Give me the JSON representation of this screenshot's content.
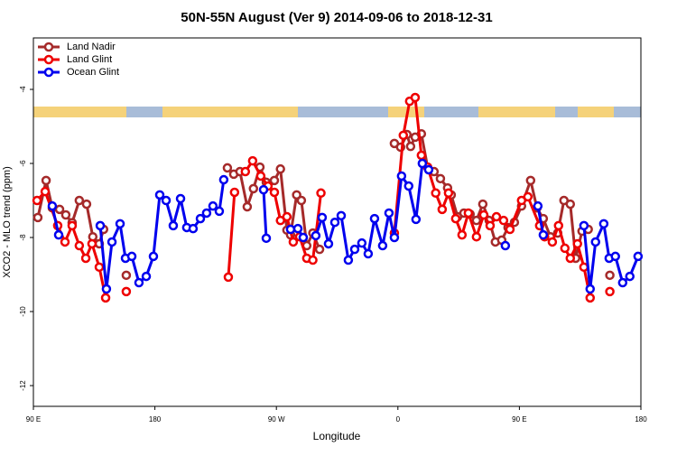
{
  "chart_data": {
    "type": "line",
    "title": "50N-55N August (Ver 9)   2014-09-06 to 2018-12-31",
    "xlabel": "Longitude",
    "ylabel": "XCO2 - MLO trend (ppm)",
    "xlim": [
      90,
      540
    ],
    "ylim": [
      -12.56,
      -2.61
    ],
    "xticks": [
      {
        "value": 90,
        "label": "90 E"
      },
      180,
      {
        "value": 270,
        "label": "90 W"
      },
      {
        "value": 360,
        "label": "0"
      },
      {
        "value": 450,
        "label": "90 E"
      },
      {
        "value": 540,
        "label": "180"
      }
    ],
    "yticks": [
      -4,
      -6,
      -8,
      -10,
      -12
    ],
    "legend": "upper left",
    "series": [
      {
        "name": "Land Nadir",
        "color": "#a52a2a",
        "x": [
          93.3,
          99.4,
          104,
          109.4,
          114,
          118.7,
          124,
          129.4,
          134,
          138.8,
          142,
          null,
          158.8,
          null,
          233.7,
          238.4,
          243,
          248.4,
          253,
          257.8,
          262.5,
          268.5,
          273,
          277.8,
          280.5,
          285,
          288.5,
          292.5,
          297,
          302,
          null,
          357.4,
          362,
          366.7,
          369.4,
          372.8,
          377.4,
          382,
          386.8,
          391.5,
          396.8,
          399.5,
          404.2,
          408.9,
          413.5,
          418.2,
          422.9,
          427.6,
          432.2,
          436.9,
          441.6,
          446.3,
          451.6,
          458.3,
          463,
          467.7,
          473,
          478.4,
          483,
          487.7,
          491.7,
          496.4,
          501,
          null,
          517
        ],
        "values": [
          -7.46,
          -6.46,
          -7.2,
          -7.24,
          -7.39,
          -7.6,
          -7.0,
          -7.1,
          -7.98,
          -8.17,
          -7.78,
          null,
          -9.02,
          null,
          -6.12,
          -6.29,
          -6.22,
          -7.17,
          -6.68,
          -6.1,
          -6.51,
          -6.46,
          -6.15,
          -7.8,
          -7.93,
          -6.85,
          -7.0,
          -8.22,
          -7.88,
          -8.32,
          null,
          -5.46,
          -5.56,
          -5.22,
          -5.54,
          -5.29,
          -5.2,
          -6.1,
          -6.22,
          -6.41,
          -6.66,
          -6.85,
          -7.44,
          -7.34,
          -7.37,
          -7.54,
          -7.1,
          -7.54,
          -8.12,
          -8.07,
          -7.73,
          -7.59,
          -7.15,
          -6.46,
          -7.2,
          -7.49,
          -7.98,
          -7.88,
          -7.0,
          -7.1,
          -8.56,
          -7.83,
          -7.78,
          null,
          -9.02
        ]
      },
      {
        "name": "Land Glint",
        "color": "#ee0000",
        "x": [
          92.7,
          98.7,
          108,
          113.4,
          118.7,
          124,
          128.8,
          133.4,
          138.8,
          143.5,
          null,
          158.8,
          null,
          234.4,
          239,
          null,
          247,
          252.4,
          258.4,
          263.8,
          268.5,
          273,
          277.8,
          282.5,
          287.2,
          292.5,
          297,
          303,
          null,
          357.4,
          364,
          368.7,
          372.8,
          377.4,
          382,
          388,
          392.8,
          397.5,
          402.8,
          407.5,
          412.2,
          418.2,
          423.6,
          428.3,
          433,
          438.3,
          443,
          451.6,
          456.3,
          465,
          468.7,
          474.4,
          479,
          483.7,
          487.7,
          493,
          497.8,
          502.4,
          null,
          517
        ],
        "values": [
          -7.0,
          -6.76,
          -7.68,
          -8.12,
          -7.68,
          -8.22,
          -8.56,
          -8.17,
          -8.8,
          -9.63,
          null,
          -9.46,
          null,
          -9.07,
          -6.78,
          null,
          -6.22,
          -5.93,
          -6.34,
          -6.61,
          -6.78,
          -7.54,
          -7.44,
          -8.12,
          -7.98,
          -8.56,
          -8.61,
          -6.8,
          null,
          -7.88,
          -5.24,
          -4.32,
          -4.22,
          -5.78,
          -6.1,
          -6.8,
          -7.24,
          -6.8,
          -7.49,
          -7.93,
          -7.34,
          -7.98,
          -7.39,
          -7.68,
          -7.44,
          -7.54,
          -7.78,
          -7.0,
          -6.9,
          -7.68,
          -7.98,
          -8.12,
          -7.68,
          -8.29,
          -8.56,
          -8.17,
          -8.8,
          -9.63,
          null,
          -9.46
        ]
      },
      {
        "name": "Ocean Glint",
        "color": "#0000ee",
        "x": [
          104,
          108.7,
          null,
          139.5,
          144.1,
          148.2,
          154.2,
          158.2,
          162.9,
          168.2,
          173.6,
          178.9,
          183.6,
          188.3,
          193.6,
          199,
          203.6,
          208.3,
          213.7,
          218.3,
          223,
          227.7,
          231,
          null,
          260.5,
          262.5,
          null,
          280.5,
          285.9,
          289.9,
          null,
          299.2,
          303.9,
          308.6,
          313.3,
          318,
          323.3,
          328,
          333.3,
          338,
          342.7,
          348.7,
          353.4,
          357.4,
          362.7,
          368,
          373.4,
          378.1,
          382.8,
          null,
          439.6,
          null,
          463.7,
          467.7,
          null,
          497.8,
          502.4,
          506.4,
          512.5,
          516.5,
          521.1,
          526.5,
          531.8,
          537.9
        ],
        "values": [
          -7.15,
          -7.93,
          null,
          -7.68,
          -9.39,
          -8.12,
          -7.63,
          -8.56,
          -8.51,
          -9.22,
          -9.05,
          -8.51,
          -6.85,
          -7.0,
          -7.68,
          -6.95,
          -7.73,
          -7.76,
          -7.49,
          -7.34,
          -7.15,
          -7.29,
          -6.44,
          null,
          -6.71,
          -8.02,
          null,
          -7.78,
          -7.76,
          -8.0,
          null,
          -7.95,
          -7.46,
          -8.17,
          -7.59,
          -7.41,
          -8.61,
          -8.32,
          -8.15,
          -8.44,
          -7.49,
          -8.22,
          -7.34,
          -8.0,
          -6.34,
          -6.61,
          -7.51,
          -6.0,
          -6.17,
          null,
          -8.22,
          null,
          -7.15,
          -7.93,
          null,
          -7.68,
          -9.39,
          -8.12,
          -7.63,
          -8.56,
          -8.51,
          -9.22,
          -9.05,
          -8.51
        ]
      }
    ]
  }
}
